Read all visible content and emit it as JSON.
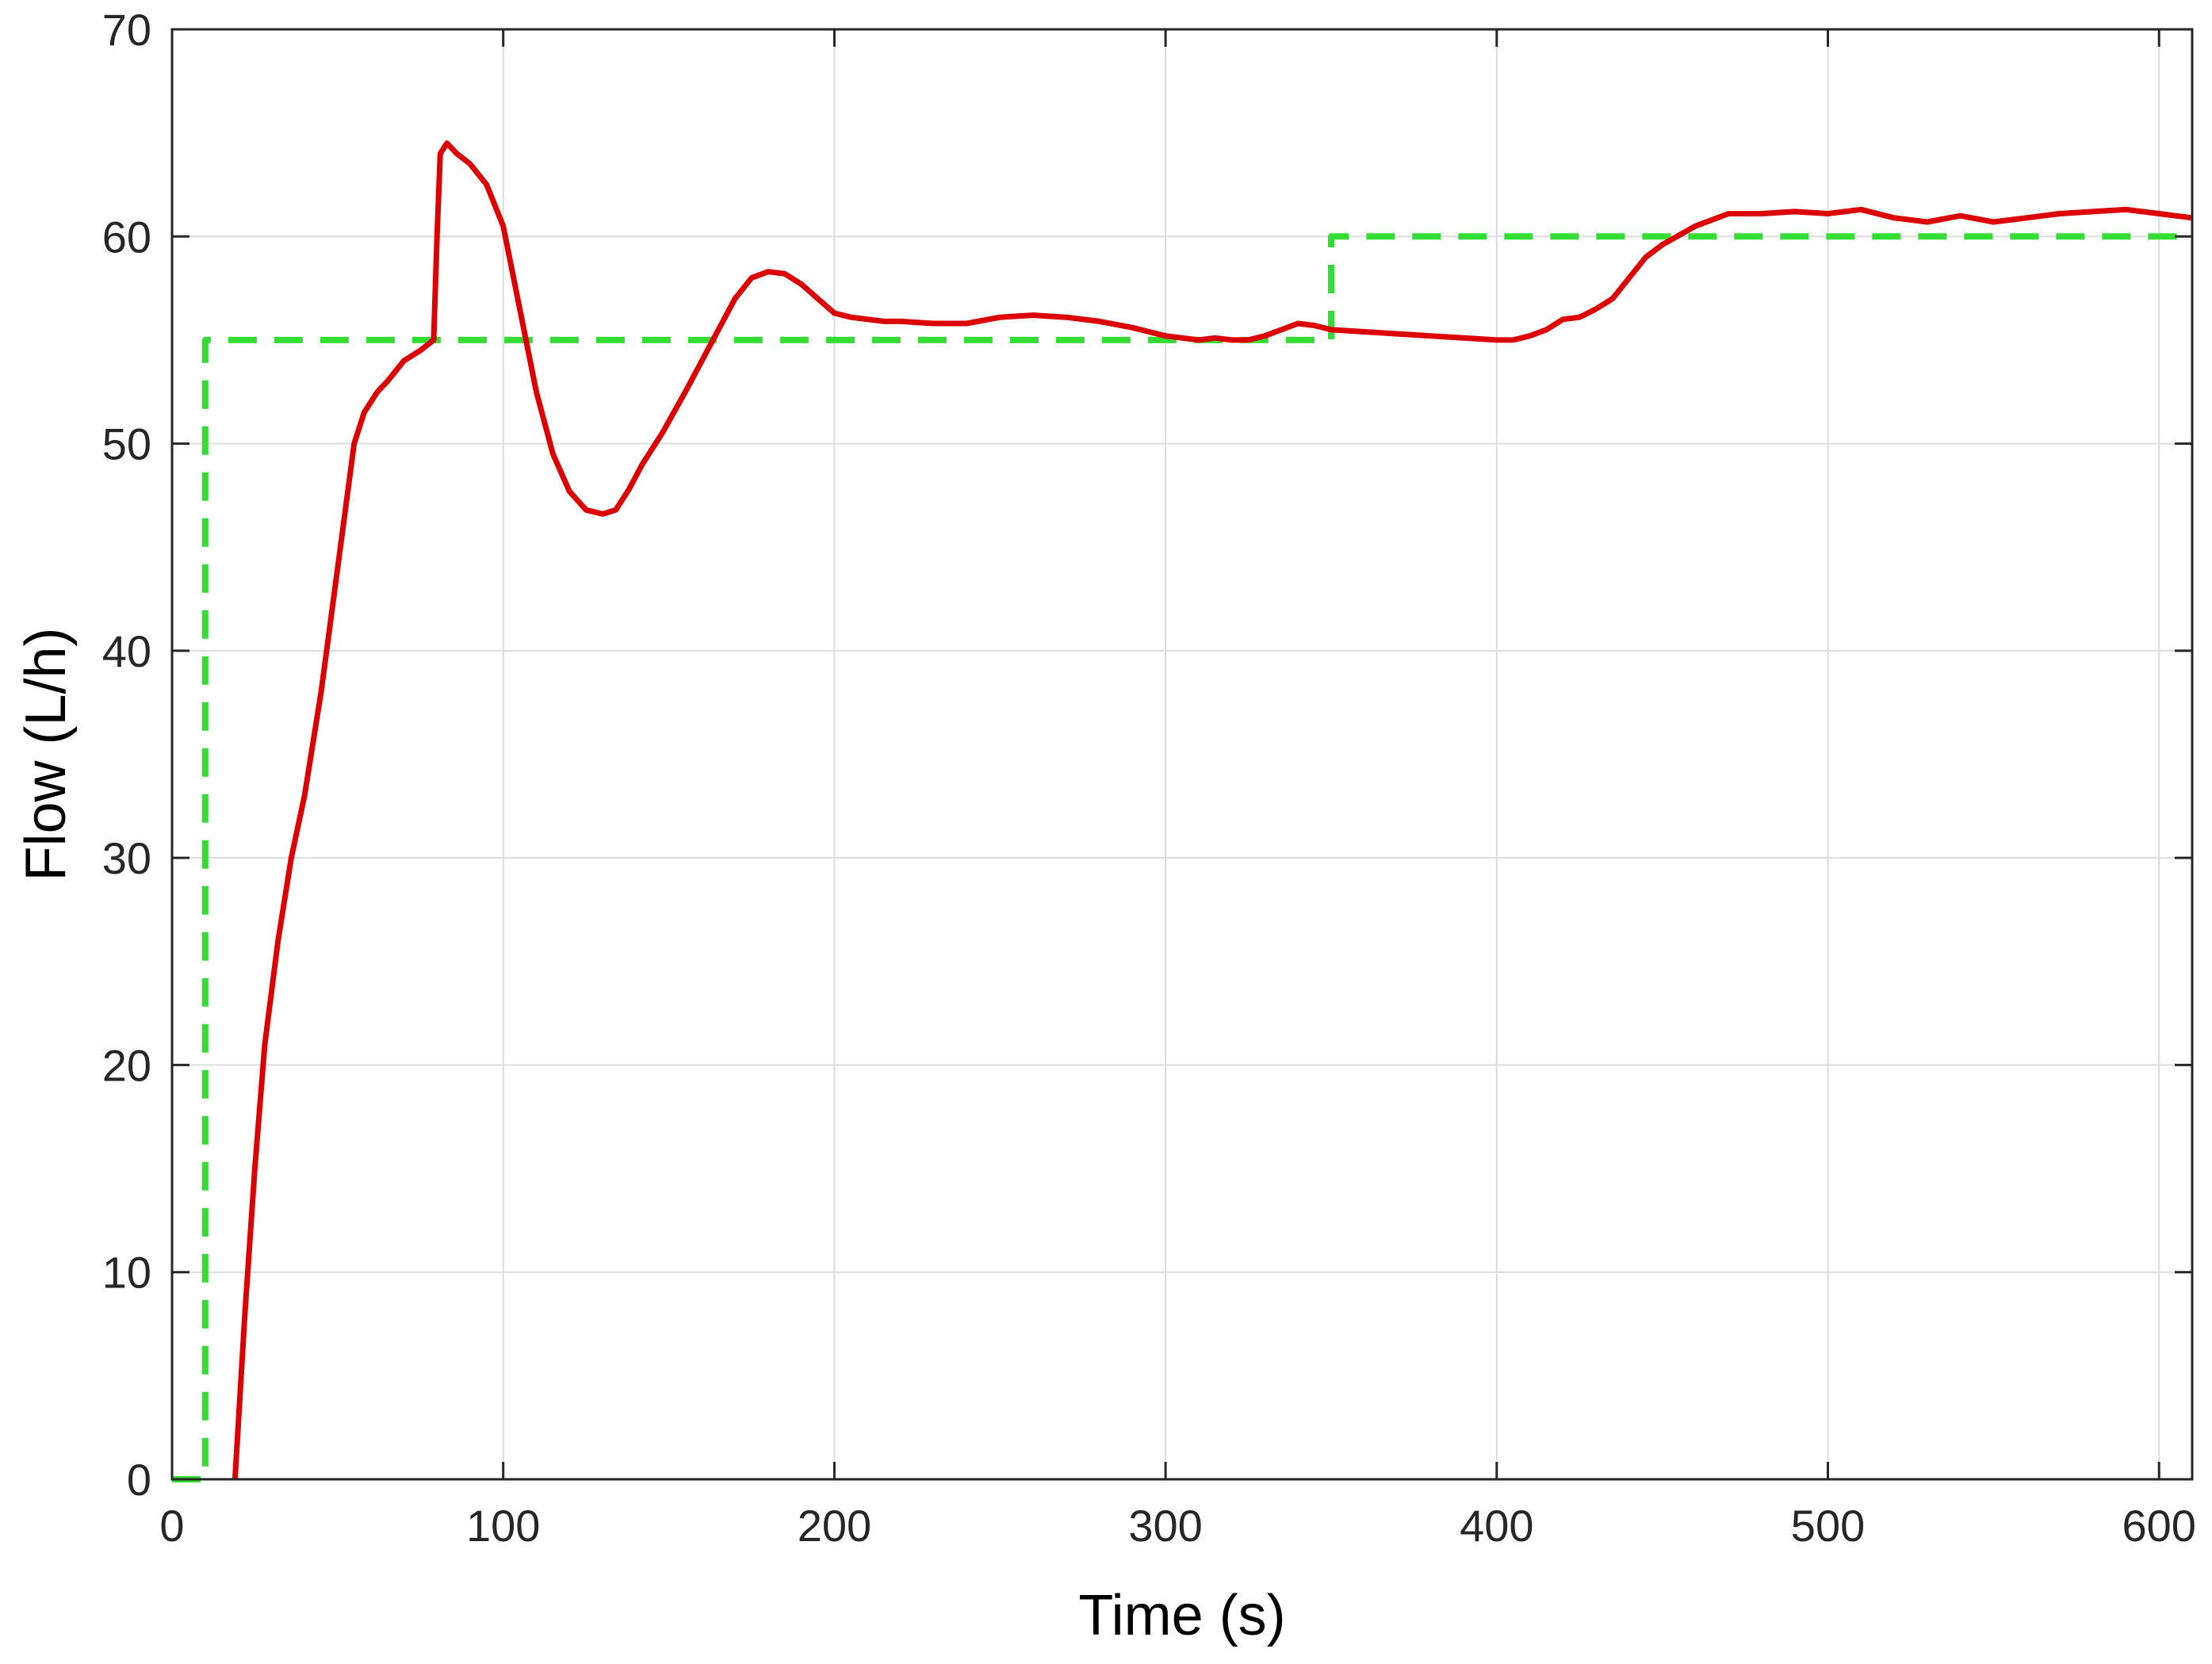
{
  "chart_data": {
    "type": "line",
    "xlabel": "Time (s)",
    "ylabel": "Flow (L/h)",
    "xlim": [
      0,
      610
    ],
    "ylim": [
      0,
      70
    ],
    "xticks": [
      0,
      100,
      200,
      300,
      400,
      500,
      600
    ],
    "yticks": [
      0,
      10,
      20,
      30,
      40,
      50,
      60,
      70
    ],
    "grid": true,
    "series": [
      {
        "color": "#33dd33",
        "style": "dashed",
        "x": [
          0,
          10,
          10,
          350,
          350,
          610
        ],
        "y": [
          0,
          0,
          55,
          55,
          60,
          60
        ]
      },
      {
        "color": "#dd0000",
        "style": "solid",
        "x": [
          19,
          22,
          25,
          28,
          32,
          36,
          40,
          45,
          50,
          55,
          58,
          62,
          65,
          70,
          75,
          79,
          80,
          81,
          83,
          86,
          90,
          95,
          100,
          105,
          110,
          115,
          120,
          125,
          130,
          134,
          138,
          142,
          148,
          155,
          160,
          165,
          170,
          175,
          180,
          185,
          190,
          195,
          200,
          205,
          210,
          215,
          220,
          230,
          240,
          250,
          260,
          270,
          280,
          290,
          300,
          305,
          310,
          315,
          320,
          325,
          330,
          335,
          340,
          345,
          350,
          360,
          370,
          380,
          390,
          400,
          405,
          410,
          415,
          420,
          425,
          430,
          435,
          440,
          445,
          450,
          460,
          465,
          470,
          480,
          490,
          500,
          510,
          520,
          530,
          540,
          550,
          560,
          570,
          580,
          590,
          600,
          605,
          610
        ],
        "y": [
          0,
          8,
          15,
          21,
          26,
          30,
          33,
          38,
          44,
          50,
          51.5,
          52.5,
          53,
          54,
          54.5,
          55,
          60,
          64,
          64.5,
          64,
          63.5,
          62.5,
          60.5,
          56.5,
          52.5,
          49.5,
          47.7,
          46.8,
          46.6,
          46.8,
          47.8,
          49,
          50.5,
          52.5,
          54,
          55.5,
          57,
          58,
          58.3,
          58.2,
          57.7,
          57,
          56.3,
          56.1,
          56,
          55.9,
          55.9,
          55.8,
          55.8,
          56.1,
          56.2,
          56.1,
          55.9,
          55.6,
          55.2,
          55.1,
          55,
          55.1,
          55,
          55,
          55.2,
          55.5,
          55.8,
          55.7,
          55.5,
          55.4,
          55.3,
          55.2,
          55.1,
          55,
          55,
          55.2,
          55.5,
          56,
          56.1,
          56.5,
          57,
          58,
          59,
          59.6,
          60.5,
          60.8,
          61.1,
          61.1,
          61.2,
          61.1,
          61.3,
          60.9,
          60.7,
          61,
          60.7,
          60.9,
          61.1,
          61.2,
          61.3,
          61.1,
          61,
          60.9
        ]
      }
    ]
  }
}
